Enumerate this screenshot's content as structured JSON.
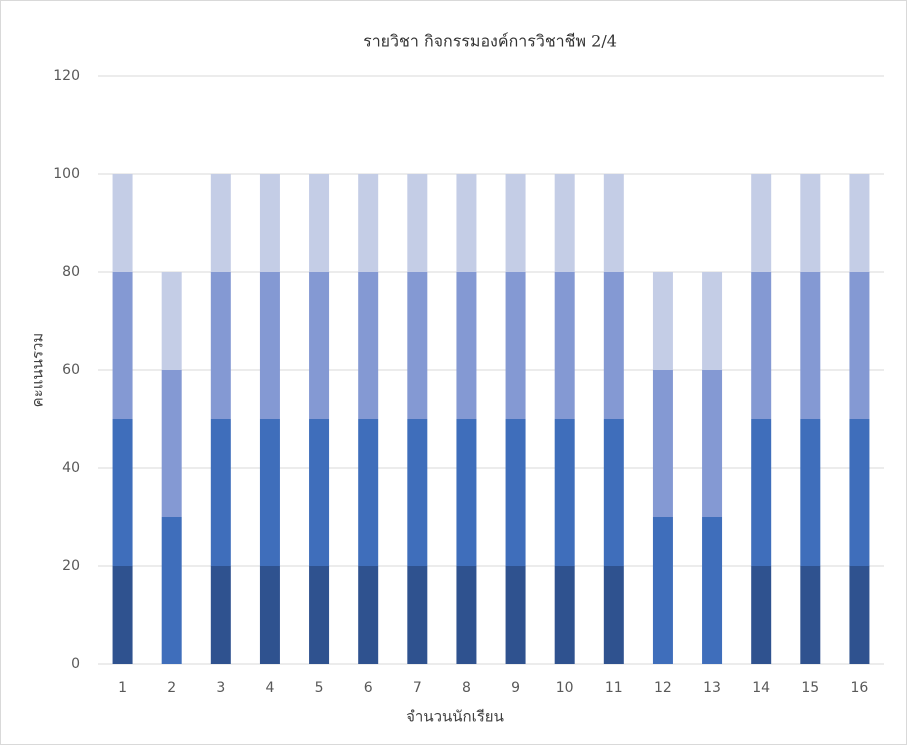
{
  "chart_data": {
    "type": "stacked-bar",
    "title": "รายวิชา กิจกรรมองค์การวิชาชีพ 2/4",
    "x_label": "จำนวนนักเรียน",
    "y_label": "คะแนนรวม",
    "categories": [
      "1",
      "2",
      "3",
      "4",
      "5",
      "6",
      "7",
      "8",
      "9",
      "10",
      "11",
      "12",
      "13",
      "14",
      "15",
      "16"
    ],
    "series": [
      {
        "color": "#2f528f",
        "values": [
          20,
          0,
          20,
          20,
          20,
          20,
          20,
          20,
          20,
          20,
          20,
          0,
          0,
          20,
          20,
          20
        ]
      },
      {
        "color": "#3f6ebb",
        "values": [
          30,
          30,
          30,
          30,
          30,
          30,
          30,
          30,
          30,
          30,
          30,
          30,
          30,
          30,
          30,
          30
        ]
      },
      {
        "color": "#8499d3",
        "values": [
          30,
          30,
          30,
          30,
          30,
          30,
          30,
          30,
          30,
          30,
          30,
          30,
          30,
          30,
          30,
          30
        ]
      },
      {
        "color": "#c4cde6",
        "values": [
          20,
          20,
          20,
          20,
          20,
          20,
          20,
          20,
          20,
          20,
          20,
          20,
          20,
          20,
          20,
          20
        ]
      }
    ],
    "ylim": [
      0,
      120
    ],
    "yticks": [
      0,
      20,
      40,
      60,
      80,
      100,
      120
    ],
    "grid": true
  }
}
